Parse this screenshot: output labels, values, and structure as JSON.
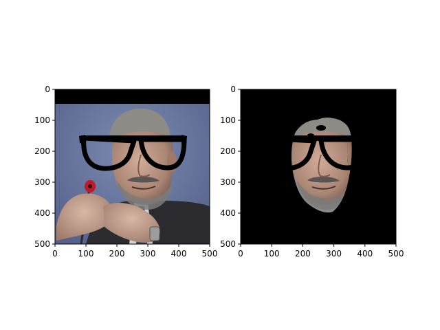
{
  "chart_data": [
    {
      "type": "image",
      "panel": "left",
      "content": "photo of a bald man in a suit speaking at a microphone, with cartoon black eyeglasses overlaid; black band across the top",
      "xlim": [
        0,
        500
      ],
      "ylim": [
        500,
        0
      ],
      "xticks": [
        "0",
        "100",
        "200",
        "300",
        "400",
        "500"
      ],
      "yticks": [
        "0",
        "100",
        "200",
        "300",
        "400",
        "500"
      ],
      "grid": false
    },
    {
      "type": "image",
      "panel": "right",
      "content": "segmented face region with the eyeglasses overlaid on a black background",
      "xlim": [
        0,
        500
      ],
      "ylim": [
        500,
        0
      ],
      "xticks": [
        "0",
        "100",
        "200",
        "300",
        "400",
        "500"
      ],
      "yticks": [
        "0",
        "100",
        "200",
        "300",
        "400",
        "500"
      ],
      "grid": false
    }
  ],
  "colors": {
    "background": "#ffffff",
    "mask": "#000000",
    "photo_backdrop": "#6f7fa6",
    "skin": "#b49283",
    "hair": "#8a8a86",
    "suit": "#2c2c30",
    "mic_red": "#c3172a"
  }
}
